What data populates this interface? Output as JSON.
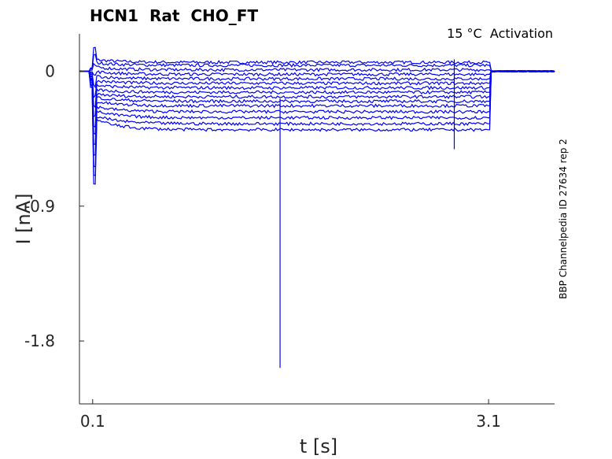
{
  "chart_data": {
    "type": "line",
    "title": "HCN1  Rat  CHO_FT",
    "annotation": "15 °C  Activation",
    "side_note": "BBP Channelpedia ID 27634 rep 2",
    "xlabel": "t [s]",
    "ylabel": "I [nA]",
    "xlim": [
      0.0,
      3.6
    ],
    "ylim": [
      -2.22,
      0.25
    ],
    "xticks": [
      0.1,
      3.1
    ],
    "xtick_labels": [
      "0.1",
      "3.1"
    ],
    "yticks": [
      0,
      -0.9,
      -1.8
    ],
    "ytick_labels": [
      "0",
      "-0.9",
      "-1.8"
    ],
    "grid": false,
    "legend": "none",
    "line_color": "#0000ff",
    "pulse": {
      "start": 0.1,
      "end": 3.1
    },
    "baseline_noise": 0.004,
    "series_steady_values": [
      0.06,
      0.04,
      0.01,
      -0.02,
      -0.05,
      -0.08,
      -0.11,
      -0.14,
      -0.17,
      -0.2,
      -0.23,
      -0.27,
      -0.31,
      -0.35,
      -0.39
    ],
    "series_onset_values": [
      0.08,
      0.06,
      0.03,
      0.0,
      -0.03,
      -0.06,
      -0.09,
      -0.12,
      -0.15,
      -0.17,
      -0.2,
      -0.23,
      -0.26,
      -0.29,
      -0.31
    ],
    "artifacts": [
      {
        "t": 1.52,
        "min": -1.98,
        "max": -0.18
      },
      {
        "t": 2.84,
        "min": -0.52,
        "max": 0.08
      }
    ]
  }
}
